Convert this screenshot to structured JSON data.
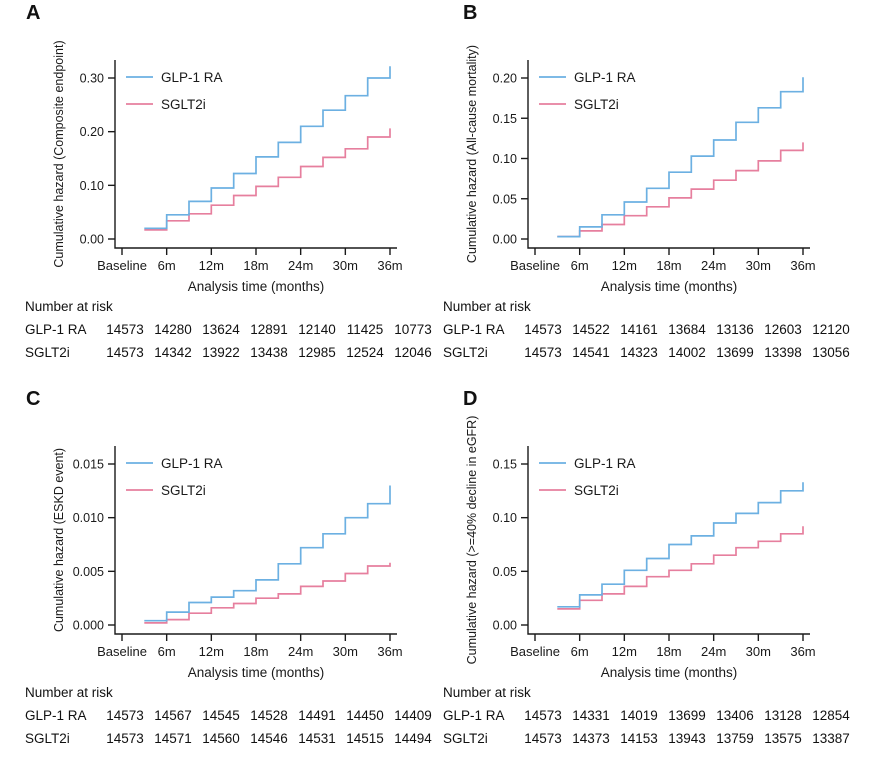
{
  "figure": {
    "background": "#ffffff",
    "axis_color": "#1a1a1a",
    "series_colors": {
      "glp1ra": "#6cb0e2",
      "sglt2i": "#e67f9e"
    }
  },
  "chart_data": [
    {
      "type": "line",
      "subtype": "step",
      "panel_label": "A",
      "ylabel": "Cumulative hazard (Composite endpoint)",
      "xlabel": "Analysis time (months)",
      "x_ticks": {
        "values": [
          0,
          6,
          12,
          18,
          24,
          30,
          36
        ],
        "labels": [
          "Baseline",
          "6m",
          "12m",
          "18m",
          "24m",
          "30m",
          "36m"
        ]
      },
      "yticks": [
        {
          "v": 0,
          "label": "0.00"
        },
        {
          "v": 0.1,
          "label": "0.10"
        },
        {
          "v": 0.2,
          "label": "0.20"
        },
        {
          "v": 0.3,
          "label": "0.30"
        }
      ],
      "ylim": [
        0,
        0.34
      ],
      "grid": false,
      "legend_position": "inside top-left",
      "series": [
        {
          "name": "GLP-1 RA",
          "color": "#6cb0e2",
          "x": [
            3,
            6,
            9,
            12,
            15,
            18,
            21,
            24,
            27,
            30,
            33,
            36
          ],
          "y": [
            0.02,
            0.045,
            0.07,
            0.095,
            0.122,
            0.153,
            0.18,
            0.21,
            0.24,
            0.267,
            0.3,
            0.322
          ]
        },
        {
          "name": "SGLT2i",
          "color": "#e67f9e",
          "x": [
            3,
            6,
            9,
            12,
            15,
            18,
            21,
            24,
            27,
            30,
            33,
            36
          ],
          "y": [
            0.017,
            0.034,
            0.047,
            0.063,
            0.081,
            0.098,
            0.115,
            0.135,
            0.152,
            0.168,
            0.19,
            0.206
          ]
        }
      ],
      "number_at_risk": {
        "title": "Number at risk",
        "rows": [
          {
            "label": "GLP-1 RA",
            "values": [
              14573,
              14280,
              13624,
              12891,
              12140,
              11425,
              10773
            ]
          },
          {
            "label": "SGLT2i",
            "values": [
              14573,
              14342,
              13922,
              13438,
              12985,
              12524,
              12046
            ]
          }
        ]
      }
    },
    {
      "type": "line",
      "subtype": "step",
      "panel_label": "B",
      "ylabel": "Cumulative hazard (All-cause mortality)",
      "xlabel": "Analysis time (months)",
      "x_ticks": {
        "values": [
          0,
          6,
          12,
          18,
          24,
          30,
          36
        ],
        "labels": [
          "Baseline",
          "6m",
          "12m",
          "18m",
          "24m",
          "30m",
          "36m"
        ]
      },
      "yticks": [
        {
          "v": 0,
          "label": "0.00"
        },
        {
          "v": 0.05,
          "label": "0.05"
        },
        {
          "v": 0.1,
          "label": "0.10"
        },
        {
          "v": 0.15,
          "label": "0.15"
        },
        {
          "v": 0.2,
          "label": "0.20"
        }
      ],
      "ylim": [
        0,
        0.21
      ],
      "grid": false,
      "legend_position": "inside top-left",
      "series": [
        {
          "name": "GLP-1 RA",
          "color": "#6cb0e2",
          "x": [
            3,
            6,
            9,
            12,
            15,
            18,
            21,
            24,
            27,
            30,
            33,
            36
          ],
          "y": [
            0.003,
            0.015,
            0.03,
            0.046,
            0.063,
            0.083,
            0.103,
            0.123,
            0.145,
            0.163,
            0.183,
            0.201
          ]
        },
        {
          "name": "SGLT2i",
          "color": "#e67f9e",
          "x": [
            3,
            6,
            9,
            12,
            15,
            18,
            21,
            24,
            27,
            30,
            33,
            36
          ],
          "y": [
            0.003,
            0.01,
            0.018,
            0.029,
            0.04,
            0.051,
            0.062,
            0.073,
            0.085,
            0.097,
            0.11,
            0.12
          ]
        }
      ],
      "number_at_risk": {
        "title": "Number at risk",
        "rows": [
          {
            "label": "GLP-1 RA",
            "values": [
              14573,
              14522,
              14161,
              13684,
              13136,
              12603,
              12120
            ]
          },
          {
            "label": "SGLT2i",
            "values": [
              14573,
              14541,
              14323,
              14002,
              13699,
              13398,
              13056
            ]
          }
        ]
      }
    },
    {
      "type": "line",
      "subtype": "step",
      "panel_label": "C",
      "ylabel": "Cumulative hazard (ESKD event)",
      "xlabel": "Analysis time (months)",
      "x_ticks": {
        "values": [
          0,
          6,
          12,
          18,
          24,
          30,
          36
        ],
        "labels": [
          "Baseline",
          "6m",
          "12m",
          "18m",
          "24m",
          "30m",
          "36m"
        ]
      },
      "yticks": [
        {
          "v": 0,
          "label": "0.000"
        },
        {
          "v": 0.005,
          "label": "0.005"
        },
        {
          "v": 0.01,
          "label": "0.010"
        },
        {
          "v": 0.015,
          "label": "0.015"
        }
      ],
      "ylim": [
        0,
        0.016
      ],
      "grid": false,
      "legend_position": "inside top-left",
      "series": [
        {
          "name": "GLP-1 RA",
          "color": "#6cb0e2",
          "x": [
            3,
            6,
            9,
            12,
            15,
            18,
            21,
            24,
            27,
            30,
            33,
            36
          ],
          "y": [
            0.0004,
            0.0012,
            0.0021,
            0.0026,
            0.0032,
            0.0042,
            0.0057,
            0.0072,
            0.0085,
            0.01,
            0.0113,
            0.013
          ]
        },
        {
          "name": "SGLT2i",
          "color": "#e67f9e",
          "x": [
            3,
            6,
            9,
            12,
            15,
            18,
            21,
            24,
            27,
            30,
            33,
            36
          ],
          "y": [
            0.0002,
            0.0005,
            0.0011,
            0.0016,
            0.002,
            0.0025,
            0.0029,
            0.0036,
            0.0041,
            0.0048,
            0.0055,
            0.0058
          ]
        }
      ],
      "number_at_risk": {
        "title": "Number at risk",
        "rows": [
          {
            "label": "GLP-1 RA",
            "values": [
              14573,
              14567,
              14545,
              14528,
              14491,
              14450,
              14409
            ]
          },
          {
            "label": "SGLT2i",
            "values": [
              14573,
              14571,
              14560,
              14546,
              14531,
              14515,
              14494
            ]
          }
        ]
      }
    },
    {
      "type": "line",
      "subtype": "step",
      "panel_label": "D",
      "ylabel": "Cumulative hazard (>=40% decline in eGFR)",
      "xlabel": "Analysis time (months)",
      "x_ticks": {
        "values": [
          0,
          6,
          12,
          18,
          24,
          30,
          36
        ],
        "labels": [
          "Baseline",
          "6m",
          "12m",
          "18m",
          "24m",
          "30m",
          "36m"
        ]
      },
      "yticks": [
        {
          "v": 0,
          "label": "0.00"
        },
        {
          "v": 0.05,
          "label": "0.05"
        },
        {
          "v": 0.1,
          "label": "0.10"
        },
        {
          "v": 0.15,
          "label": "0.15"
        }
      ],
      "ylim": [
        0,
        0.16
      ],
      "grid": false,
      "legend_position": "inside top-left",
      "series": [
        {
          "name": "GLP-1 RA",
          "color": "#6cb0e2",
          "x": [
            3,
            6,
            9,
            12,
            15,
            18,
            21,
            24,
            27,
            30,
            33,
            36
          ],
          "y": [
            0.017,
            0.028,
            0.038,
            0.051,
            0.062,
            0.075,
            0.083,
            0.095,
            0.104,
            0.114,
            0.125,
            0.133
          ]
        },
        {
          "name": "SGLT2i",
          "color": "#e67f9e",
          "x": [
            3,
            6,
            9,
            12,
            15,
            18,
            21,
            24,
            27,
            30,
            33,
            36
          ],
          "y": [
            0.015,
            0.023,
            0.029,
            0.036,
            0.045,
            0.051,
            0.057,
            0.065,
            0.072,
            0.078,
            0.085,
            0.092
          ]
        }
      ],
      "number_at_risk": {
        "title": "Number at risk",
        "rows": [
          {
            "label": "GLP-1 RA",
            "values": [
              14573,
              14331,
              14019,
              13699,
              13406,
              13128,
              12854
            ]
          },
          {
            "label": "SGLT2i",
            "values": [
              14573,
              14373,
              14153,
              13943,
              13759,
              13575,
              13387
            ]
          }
        ]
      }
    }
  ]
}
